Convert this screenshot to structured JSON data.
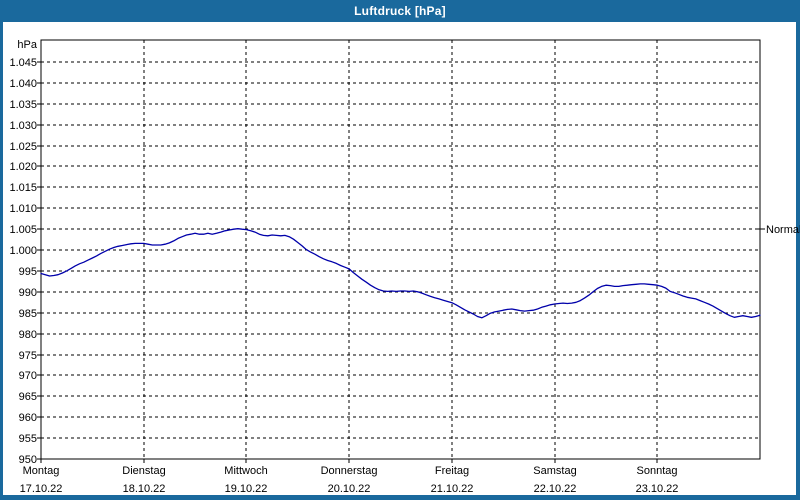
{
  "window": {
    "title": "Luftdruck [hPa]"
  },
  "colors": {
    "frame_blue": "#1a699d",
    "title_text": "#ffffff",
    "curve_blue": "#0000aa",
    "grid_black": "#000000",
    "plot_background": "#ffffff"
  },
  "chart_data": {
    "type": "line",
    "title": "Luftdruck [hPa]",
    "unit_label": "hPa",
    "ylabel": "hPa",
    "xlabel": "",
    "grid": true,
    "legend_position": "none",
    "ylim": [
      950,
      1045
    ],
    "xlim_hours": [
      0,
      168
    ],
    "yticks": [
      {
        "value": 950,
        "label": "950"
      },
      {
        "value": 955,
        "label": "955"
      },
      {
        "value": 960,
        "label": "960"
      },
      {
        "value": 965,
        "label": "965"
      },
      {
        "value": 970,
        "label": "970"
      },
      {
        "value": 975,
        "label": "975"
      },
      {
        "value": 980,
        "label": "980"
      },
      {
        "value": 985,
        "label": "985"
      },
      {
        "value": 990,
        "label": "990"
      },
      {
        "value": 995,
        "label": "995"
      },
      {
        "value": 1000,
        "label": "1.000"
      },
      {
        "value": 1005,
        "label": "1.005"
      },
      {
        "value": 1010,
        "label": "1.010"
      },
      {
        "value": 1015,
        "label": "1.015"
      },
      {
        "value": 1020,
        "label": "1.020"
      },
      {
        "value": 1025,
        "label": "1.025"
      },
      {
        "value": 1030,
        "label": "1.030"
      },
      {
        "value": 1035,
        "label": "1.035"
      },
      {
        "value": 1040,
        "label": "1.040"
      },
      {
        "value": 1045,
        "label": "1.045"
      }
    ],
    "xticks": [
      {
        "hour": 0,
        "day": "Montag",
        "date": "17.10.22"
      },
      {
        "hour": 24,
        "day": "Dienstag",
        "date": "18.10.22"
      },
      {
        "hour": 48,
        "day": "Mittwoch",
        "date": "19.10.22"
      },
      {
        "hour": 72,
        "day": "Donnerstag",
        "date": "20.10.22"
      },
      {
        "hour": 96,
        "day": "Freitag",
        "date": "21.10.22"
      },
      {
        "hour": 120,
        "day": "Samstag",
        "date": "22.10.22"
      },
      {
        "hour": 144,
        "day": "Sonntag",
        "date": "23.10.22"
      }
    ],
    "normal_marker": {
      "value": 1005,
      "label": "Normal"
    },
    "series": [
      {
        "name": "Luftdruck",
        "color": "#0000aa",
        "points": [
          [
            0,
            994.4
          ],
          [
            1,
            994.1
          ],
          [
            2,
            993.8
          ],
          [
            3,
            993.9
          ],
          [
            4,
            994.1
          ],
          [
            5,
            994.5
          ],
          [
            6,
            995.0
          ],
          [
            7,
            995.6
          ],
          [
            8,
            996.2
          ],
          [
            9,
            996.7
          ],
          [
            10,
            997.1
          ],
          [
            11,
            997.6
          ],
          [
            12,
            998.1
          ],
          [
            13,
            998.6
          ],
          [
            14,
            999.2
          ],
          [
            15,
            999.7
          ],
          [
            16,
            1000.2
          ],
          [
            17,
            1000.6
          ],
          [
            18,
            1000.9
          ],
          [
            19,
            1001.1
          ],
          [
            20,
            1001.3
          ],
          [
            21,
            1001.5
          ],
          [
            22,
            1001.6
          ],
          [
            23,
            1001.6
          ],
          [
            24,
            1001.6
          ],
          [
            25,
            1001.4
          ],
          [
            26,
            1001.2
          ],
          [
            27,
            1001.2
          ],
          [
            28,
            1001.2
          ],
          [
            29,
            1001.4
          ],
          [
            30,
            1001.7
          ],
          [
            31,
            1002.2
          ],
          [
            32,
            1002.8
          ],
          [
            33,
            1003.2
          ],
          [
            34,
            1003.6
          ],
          [
            35,
            1003.8
          ],
          [
            36,
            1004.0
          ],
          [
            37,
            1003.8
          ],
          [
            38,
            1003.8
          ],
          [
            39,
            1004.0
          ],
          [
            40,
            1003.8
          ],
          [
            41,
            1004.0
          ],
          [
            42,
            1004.3
          ],
          [
            43,
            1004.6
          ],
          [
            44,
            1004.8
          ],
          [
            45,
            1005.0
          ],
          [
            46,
            1005.1
          ],
          [
            47,
            1005.0
          ],
          [
            48,
            1004.9
          ],
          [
            49,
            1004.6
          ],
          [
            50,
            1004.3
          ],
          [
            51,
            1003.8
          ],
          [
            52,
            1003.5
          ],
          [
            53,
            1003.4
          ],
          [
            54,
            1003.6
          ],
          [
            55,
            1003.5
          ],
          [
            56,
            1003.4
          ],
          [
            57,
            1003.5
          ],
          [
            58,
            1003.2
          ],
          [
            59,
            1002.6
          ],
          [
            60,
            1001.8
          ],
          [
            61,
            1001.0
          ],
          [
            62,
            1000.1
          ],
          [
            63,
            999.5
          ],
          [
            64,
            999.0
          ],
          [
            65,
            998.4
          ],
          [
            66,
            997.9
          ],
          [
            67,
            997.5
          ],
          [
            68,
            997.2
          ],
          [
            69,
            996.8
          ],
          [
            70,
            996.3
          ],
          [
            71,
            995.9
          ],
          [
            72,
            995.5
          ],
          [
            73,
            994.6
          ],
          [
            74,
            993.8
          ],
          [
            75,
            993.0
          ],
          [
            76,
            992.3
          ],
          [
            77,
            991.6
          ],
          [
            78,
            991.0
          ],
          [
            79,
            990.5
          ],
          [
            80,
            990.2
          ],
          [
            81,
            990.1
          ],
          [
            82,
            990.2
          ],
          [
            83,
            990.1
          ],
          [
            84,
            990.2
          ],
          [
            85,
            990.2
          ],
          [
            86,
            990.1
          ],
          [
            87,
            990.2
          ],
          [
            88,
            990.0
          ],
          [
            89,
            989.7
          ],
          [
            90,
            989.3
          ],
          [
            91,
            988.9
          ],
          [
            92,
            988.6
          ],
          [
            93,
            988.3
          ],
          [
            94,
            988.0
          ],
          [
            95,
            987.7
          ],
          [
            96,
            987.4
          ],
          [
            97,
            986.9
          ],
          [
            98,
            986.3
          ],
          [
            99,
            985.7
          ],
          [
            100,
            985.2
          ],
          [
            101,
            984.7
          ],
          [
            102,
            984.1
          ],
          [
            103,
            983.8
          ],
          [
            104,
            984.3
          ],
          [
            105,
            984.9
          ],
          [
            106,
            985.2
          ],
          [
            107,
            985.4
          ],
          [
            108,
            985.6
          ],
          [
            109,
            985.8
          ],
          [
            110,
            985.9
          ],
          [
            111,
            985.7
          ],
          [
            112,
            985.5
          ],
          [
            113,
            985.4
          ],
          [
            114,
            985.5
          ],
          [
            115,
            985.6
          ],
          [
            116,
            985.9
          ],
          [
            117,
            986.3
          ],
          [
            118,
            986.6
          ],
          [
            119,
            986.9
          ],
          [
            120,
            987.1
          ],
          [
            121,
            987.2
          ],
          [
            122,
            987.3
          ],
          [
            123,
            987.2
          ],
          [
            124,
            987.3
          ],
          [
            125,
            987.5
          ],
          [
            126,
            987.9
          ],
          [
            127,
            988.5
          ],
          [
            128,
            989.2
          ],
          [
            129,
            990.0
          ],
          [
            130,
            990.8
          ],
          [
            131,
            991.3
          ],
          [
            132,
            991.6
          ],
          [
            133,
            991.5
          ],
          [
            134,
            991.3
          ],
          [
            135,
            991.3
          ],
          [
            136,
            991.5
          ],
          [
            137,
            991.6
          ],
          [
            138,
            991.7
          ],
          [
            139,
            991.8
          ],
          [
            140,
            991.9
          ],
          [
            141,
            991.9
          ],
          [
            142,
            991.8
          ],
          [
            143,
            991.7
          ],
          [
            144,
            991.6
          ],
          [
            145,
            991.3
          ],
          [
            146,
            990.9
          ],
          [
            147,
            990.1
          ],
          [
            148,
            989.8
          ],
          [
            149,
            989.4
          ],
          [
            150,
            989.0
          ],
          [
            151,
            988.7
          ],
          [
            152,
            988.5
          ],
          [
            153,
            988.3
          ],
          [
            154,
            987.9
          ],
          [
            155,
            987.5
          ],
          [
            156,
            987.1
          ],
          [
            157,
            986.6
          ],
          [
            158,
            986.0
          ],
          [
            159,
            985.4
          ],
          [
            160,
            984.8
          ],
          [
            161,
            984.3
          ],
          [
            162,
            983.9
          ],
          [
            163,
            984.1
          ],
          [
            164,
            984.3
          ],
          [
            165,
            984.1
          ],
          [
            166,
            983.9
          ],
          [
            167,
            984.1
          ],
          [
            168,
            984.4
          ]
        ]
      }
    ]
  }
}
